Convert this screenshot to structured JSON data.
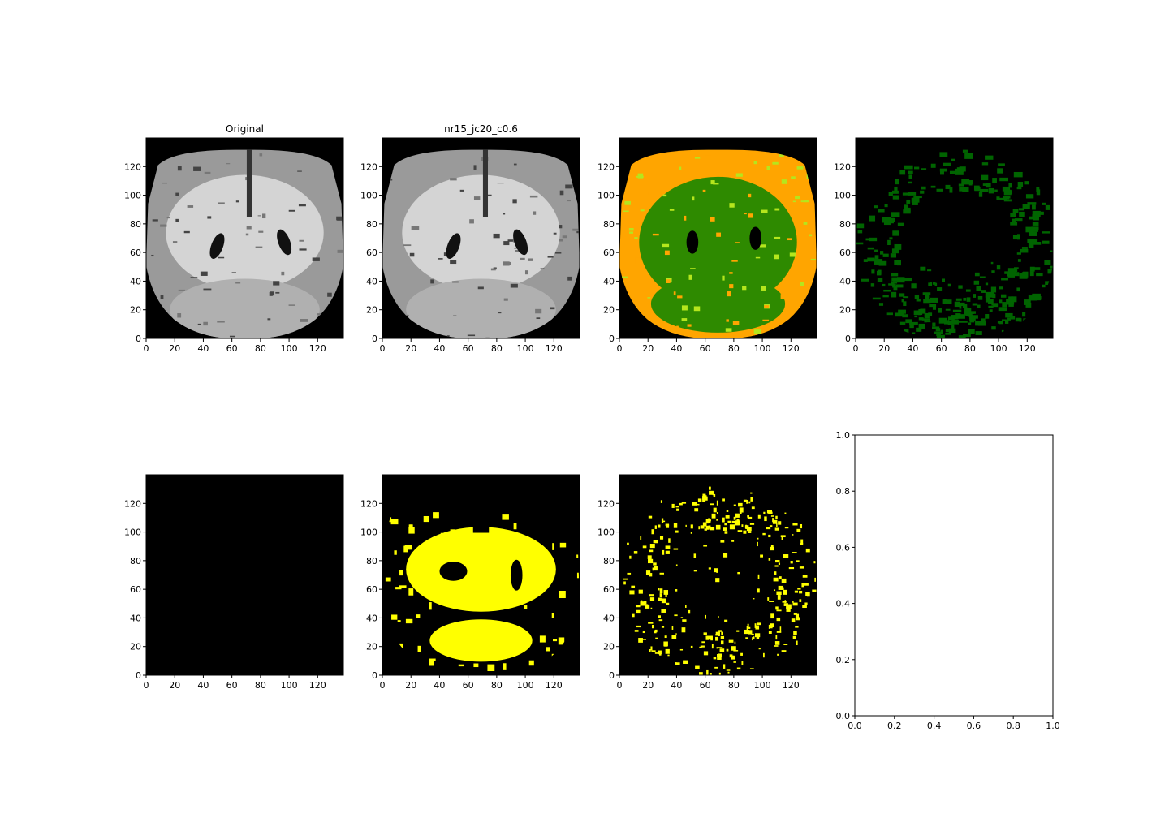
{
  "figure": {
    "layout": "2 rows x 4 columns",
    "colors": {
      "background": "#ffffff",
      "image_background": "#000000",
      "axis": "#000000",
      "mri_gray": "#c8c8c8",
      "segmentation_green": "#2e8a00",
      "segmentation_lightgreen": "#b5e61d",
      "segmentation_orange": "#ffa500",
      "dark_green": "#006400",
      "yellow": "#ffff00"
    }
  },
  "chart_data": [
    {
      "type": "image",
      "id": "orig",
      "title": "Original",
      "content": "grayscale coronal brain MRI slice",
      "xlim": [
        0,
        138
      ],
      "ylim": [
        0,
        140
      ],
      "xticks": [
        0,
        20,
        40,
        60,
        80,
        100,
        120
      ],
      "yticks": [
        0,
        20,
        40,
        60,
        80,
        100,
        120
      ],
      "xtick_labels": [
        "0",
        "20",
        "40",
        "60",
        "80",
        "100",
        "120"
      ],
      "ytick_labels": [
        "0",
        "20",
        "40",
        "60",
        "80",
        "100",
        "120"
      ]
    },
    {
      "type": "image",
      "id": "denoised",
      "title": "nr15_jc20_c0.6",
      "content": "grayscale coronal brain MRI slice (processed)",
      "xlim": [
        0,
        138
      ],
      "ylim": [
        0,
        140
      ],
      "xticks": [
        0,
        20,
        40,
        60,
        80,
        100,
        120
      ],
      "yticks": [
        0,
        20,
        40,
        60,
        80,
        100,
        120
      ],
      "xtick_labels": [
        "0",
        "20",
        "40",
        "60",
        "80",
        "100",
        "120"
      ],
      "ytick_labels": [
        "0",
        "20",
        "40",
        "60",
        "80",
        "100",
        "120"
      ]
    },
    {
      "type": "image",
      "id": "segmentation",
      "title": "",
      "content": "color segmentation: green white matter, orange/light-green gray matter",
      "xlim": [
        0,
        138
      ],
      "ylim": [
        0,
        140
      ],
      "xticks": [
        0,
        20,
        40,
        60,
        80,
        100,
        120
      ],
      "yticks": [
        0,
        20,
        40,
        60,
        80,
        100,
        120
      ],
      "xtick_labels": [
        "0",
        "20",
        "40",
        "60",
        "80",
        "100",
        "120"
      ],
      "ytick_labels": [
        "0",
        "20",
        "40",
        "60",
        "80",
        "100",
        "120"
      ]
    },
    {
      "type": "image",
      "id": "gm-mask",
      "title": "",
      "content": "dark green cortical mask",
      "xlim": [
        0,
        138
      ],
      "ylim": [
        0,
        140
      ],
      "xticks": [
        0,
        20,
        40,
        60,
        80,
        100,
        120
      ],
      "yticks": [
        0,
        20,
        40,
        60,
        80,
        100,
        120
      ],
      "xtick_labels": [
        "0",
        "20",
        "40",
        "60",
        "80",
        "100",
        "120"
      ],
      "ytick_labels": [
        "0",
        "20",
        "40",
        "60",
        "80",
        "100",
        "120"
      ]
    },
    {
      "type": "image",
      "id": "empty-mask",
      "title": "",
      "content": "all-black mask",
      "xlim": [
        0,
        138
      ],
      "ylim": [
        0,
        140
      ],
      "xticks": [
        0,
        20,
        40,
        60,
        80,
        100,
        120
      ],
      "yticks": [
        0,
        20,
        40,
        60,
        80,
        100,
        120
      ],
      "xtick_labels": [
        "0",
        "20",
        "40",
        "60",
        "80",
        "100",
        "120"
      ],
      "ytick_labels": [
        "0",
        "20",
        "40",
        "60",
        "80",
        "100",
        "120"
      ]
    },
    {
      "type": "image",
      "id": "wm-mask",
      "title": "",
      "content": "yellow white-matter mask",
      "xlim": [
        0,
        138
      ],
      "ylim": [
        0,
        140
      ],
      "xticks": [
        0,
        20,
        40,
        60,
        80,
        100,
        120
      ],
      "yticks": [
        0,
        20,
        40,
        60,
        80,
        100,
        120
      ],
      "xtick_labels": [
        "0",
        "20",
        "40",
        "60",
        "80",
        "100",
        "120"
      ],
      "ytick_labels": [
        "0",
        "20",
        "40",
        "60",
        "80",
        "100",
        "120"
      ]
    },
    {
      "type": "image",
      "id": "edge-mask",
      "title": "",
      "content": "yellow scattered boundary mask",
      "xlim": [
        0,
        138
      ],
      "ylim": [
        0,
        140
      ],
      "xticks": [
        0,
        20,
        40,
        60,
        80,
        100,
        120
      ],
      "yticks": [
        0,
        20,
        40,
        60,
        80,
        100,
        120
      ],
      "xtick_labels": [
        "0",
        "20",
        "40",
        "60",
        "80",
        "100",
        "120"
      ],
      "ytick_labels": [
        "0",
        "20",
        "40",
        "60",
        "80",
        "100",
        "120"
      ]
    },
    {
      "type": "empty",
      "id": "empty-axes",
      "title": "",
      "xlim": [
        0,
        1
      ],
      "ylim": [
        0,
        1
      ],
      "xticks": [
        0,
        0.2,
        0.4,
        0.6,
        0.8,
        1.0
      ],
      "yticks": [
        0,
        0.2,
        0.4,
        0.6,
        0.8,
        1.0
      ],
      "xtick_labels": [
        "0.0",
        "0.2",
        "0.4",
        "0.6",
        "0.8",
        "1.0"
      ],
      "ytick_labels": [
        "0.0",
        "0.2",
        "0.4",
        "0.6",
        "0.8",
        "1.0"
      ]
    }
  ]
}
